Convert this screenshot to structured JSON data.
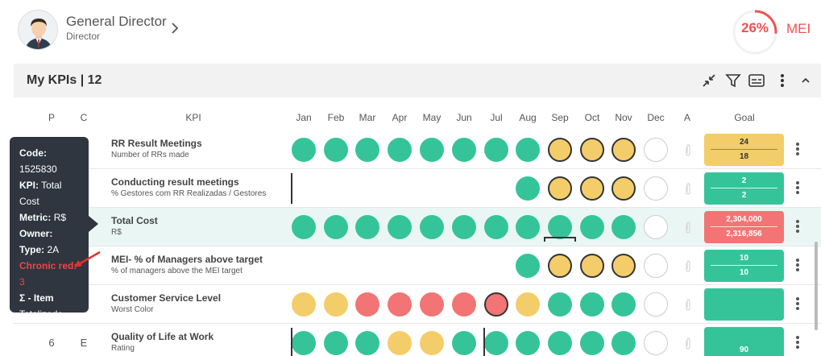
{
  "user": {
    "name": "General Director",
    "role": "Director"
  },
  "mei": {
    "percent_label": "26%",
    "percent_value": 26,
    "label": "MEI",
    "color": "#f05252"
  },
  "kpi_bar": {
    "title": "My KPIs | 12",
    "icons": [
      "collapse-icon",
      "filter-icon",
      "subtitles-icon",
      "more-vert-icon",
      "chevron-up-icon"
    ]
  },
  "columns": {
    "p": "P",
    "c": "C",
    "kpi": "KPI",
    "months": [
      "Jan",
      "Feb",
      "Mar",
      "Apr",
      "May",
      "Jun",
      "Jul",
      "Aug",
      "Sep",
      "Oct",
      "Nov",
      "Dec"
    ],
    "a": "A",
    "goal": "Goal"
  },
  "colors": {
    "green": "#35c49a",
    "yellow": "#f3cd6a",
    "red": "#f27474",
    "tooltip_bg": "#2f3640"
  },
  "rows": [
    {
      "p": "",
      "c": "",
      "name": "RR Result Meetings",
      "sub": "Number of RRs made",
      "dots": [
        "g",
        "g",
        "g",
        "g",
        "g",
        "g",
        "g",
        "g",
        "yr",
        "yr",
        "yr",
        "e"
      ],
      "goal_color": "y",
      "goal_top": "24",
      "goal_bottom": "18"
    },
    {
      "p": "",
      "c": "",
      "name": "Conducting result meetings",
      "sub": "% Gestores com RR Realizadas / Gestores",
      "dots": [
        "",
        "",
        "",
        "",
        "",
        "",
        "",
        "g",
        "yr",
        "yr",
        "yr",
        "e"
      ],
      "goal_color": "g",
      "goal_top": "2",
      "goal_bottom": "2"
    },
    {
      "p": "",
      "c": "",
      "name": "Total Cost",
      "sub": "R$",
      "dots": [
        "g",
        "g",
        "g",
        "g",
        "g",
        "g",
        "g",
        "g",
        "g",
        "g",
        "g",
        "e"
      ],
      "goal_color": "r",
      "goal_top": "2,304,000",
      "goal_bottom": "2,316,856"
    },
    {
      "p": "",
      "c": "",
      "name": "MEI- % of Managers above target",
      "sub": "% of managers above the MEI target",
      "dots": [
        "",
        "",
        "",
        "",
        "",
        "",
        "",
        "g",
        "yr",
        "yr",
        "yr",
        "e"
      ],
      "goal_color": "g",
      "goal_top": "10",
      "goal_bottom": "10"
    },
    {
      "p": "",
      "c": "",
      "name": "Customer Service Level",
      "sub": "Worst Color",
      "dots": [
        "y",
        "y",
        "r",
        "r",
        "r",
        "r",
        "rr",
        "y",
        "g",
        "g",
        "g",
        "e"
      ],
      "goal_color": "g",
      "goal_top": "",
      "goal_bottom": ""
    },
    {
      "p": "6",
      "c": "E",
      "name": "Quality of Life at Work",
      "sub": "Rating",
      "dots": [
        "g",
        "g",
        "g",
        "y",
        "y",
        "g",
        "g",
        "g",
        "g",
        "g",
        "g",
        "e"
      ],
      "goal_color": "g",
      "goal_top": "",
      "goal_bottom": "90"
    }
  ],
  "tooltip": {
    "code_label": "Code:",
    "code_value": "1525830",
    "kpi_label": "KPI:",
    "kpi_value1": "Total",
    "kpi_value2": "Cost",
    "metric_label": "Metric:",
    "metric_value": "R$",
    "owner_label": "Owner:",
    "type_label": "Type:",
    "type_value": "2A",
    "chronic_label": "Chronic red:",
    "chronic_value": "3",
    "sigma_label": "Σ - Item",
    "totalized": "Totalizado"
  }
}
